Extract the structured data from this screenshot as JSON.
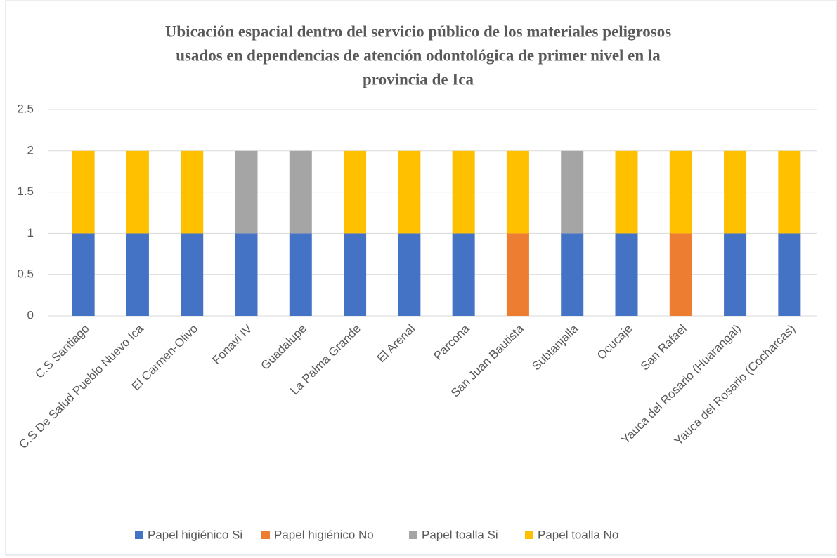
{
  "chart_data": {
    "type": "stacked_bar",
    "title": [
      "Ubicación espacial dentro del servicio público de los materiales peligrosos",
      "usados en dependencias de atención odontológica de primer nivel en la",
      "provincia de Ica"
    ],
    "categories": [
      "C.S Santiago",
      "C.S De Salud Pueblo Nuevo Ica",
      "El Carmen-Olivo",
      "Fonavi IV",
      "Guadalupe",
      "La Palma Grande",
      "El Arenal",
      "Parcona",
      "San Juan Bautista",
      "Subtanjalla",
      "Ocucaje",
      "San Rafael",
      "Yauca del Rosario (Huarangal)",
      "Yauca del Rosario (Cocharcas)"
    ],
    "series": [
      {
        "name": "Papel higiénico Si",
        "color": "#4472c4",
        "values": [
          1,
          1,
          1,
          1,
          1,
          1,
          1,
          1,
          0,
          1,
          1,
          0,
          1,
          1
        ]
      },
      {
        "name": "Papel higiénico No",
        "color": "#ed7d31",
        "values": [
          0,
          0,
          0,
          0,
          0,
          0,
          0,
          0,
          1,
          0,
          0,
          1,
          0,
          0
        ]
      },
      {
        "name": "Papel toalla Si",
        "color": "#a5a5a5",
        "values": [
          0,
          0,
          0,
          1,
          1,
          0,
          0,
          0,
          0,
          1,
          0,
          0,
          0,
          0
        ]
      },
      {
        "name": "Papel toalla No",
        "color": "#ffc000",
        "values": [
          1,
          1,
          1,
          0,
          0,
          1,
          1,
          1,
          1,
          0,
          1,
          1,
          1,
          1
        ]
      }
    ],
    "ylim": [
      0,
      2.5
    ],
    "yticks": [
      0,
      0.5,
      1,
      1.5,
      2,
      2.5
    ],
    "grid": true,
    "legend": "bottom"
  }
}
